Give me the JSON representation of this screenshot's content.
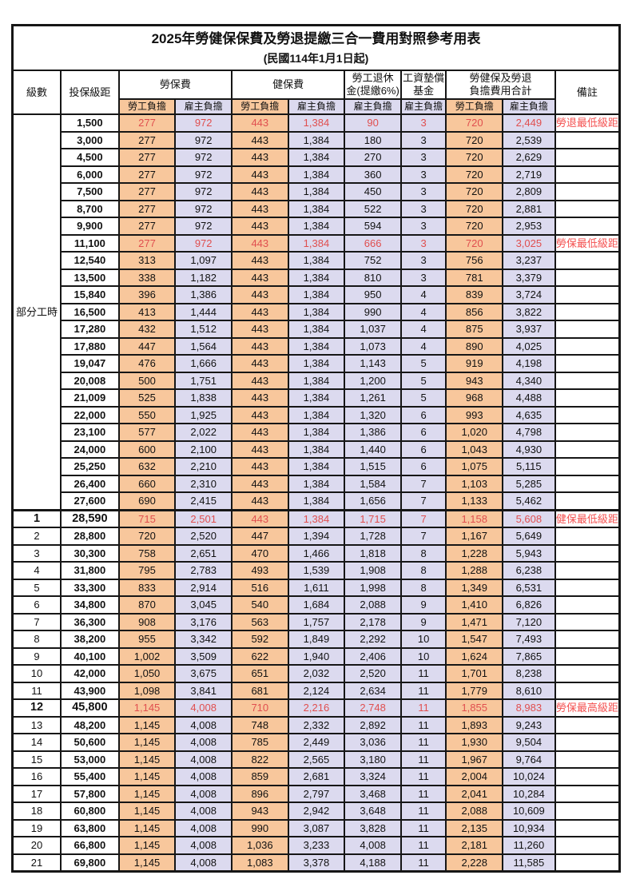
{
  "table": {
    "title": "2025年勞健保保費及勞退提繳三合一費用對照參考用表",
    "subtitle": "(民國114年1月1日起)",
    "columns": {
      "level": "級數",
      "salary": "投保級距",
      "labor": "勞保費",
      "health": "健保費",
      "pension_line1": "勞工退休",
      "pension_line2": "金(提繳6%)",
      "wage_fund_line1": "工資墊償",
      "wage_fund_line2": "基金",
      "total_line1": "勞健保及勞退",
      "total_line2": "負擔費用合計",
      "remark": "備註",
      "employee": "勞工負擔",
      "employer": "雇主負擔"
    },
    "colors": {
      "employee_bg": "#F8C79C",
      "employer_bg": "#DCDAEF",
      "highlight_text": "#E04F4F",
      "remark_text": "#F4504F",
      "border": "#161616"
    },
    "part_time_label": "部分工時",
    "part_time_row_count": 23,
    "value_column_keys": [
      "labor-employee",
      "labor-employer",
      "health-employee",
      "health-employer",
      "pension-employer",
      "wage-fund-employer",
      "total-employee",
      "total-employer"
    ],
    "rows": [
      {
        "level": null,
        "salary": "1,500",
        "values": [
          "277",
          "972",
          "443",
          "1,384",
          "90",
          "3",
          "720",
          "2,449"
        ],
        "remark": "勞退最低級距",
        "red": true
      },
      {
        "level": null,
        "salary": "3,000",
        "values": [
          "277",
          "972",
          "443",
          "1,384",
          "180",
          "3",
          "720",
          "2,539"
        ],
        "remark": ""
      },
      {
        "level": null,
        "salary": "4,500",
        "values": [
          "277",
          "972",
          "443",
          "1,384",
          "270",
          "3",
          "720",
          "2,629"
        ],
        "remark": ""
      },
      {
        "level": null,
        "salary": "6,000",
        "values": [
          "277",
          "972",
          "443",
          "1,384",
          "360",
          "3",
          "720",
          "2,719"
        ],
        "remark": ""
      },
      {
        "level": null,
        "salary": "7,500",
        "values": [
          "277",
          "972",
          "443",
          "1,384",
          "450",
          "3",
          "720",
          "2,809"
        ],
        "remark": ""
      },
      {
        "level": null,
        "salary": "8,700",
        "values": [
          "277",
          "972",
          "443",
          "1,384",
          "522",
          "3",
          "720",
          "2,881"
        ],
        "remark": ""
      },
      {
        "level": null,
        "salary": "9,900",
        "values": [
          "277",
          "972",
          "443",
          "1,384",
          "594",
          "3",
          "720",
          "2,953"
        ],
        "remark": ""
      },
      {
        "level": null,
        "salary": "11,100",
        "values": [
          "277",
          "972",
          "443",
          "1,384",
          "666",
          "3",
          "720",
          "3,025"
        ],
        "remark": "勞保最低級距",
        "red": true
      },
      {
        "level": null,
        "salary": "12,540",
        "values": [
          "313",
          "1,097",
          "443",
          "1,384",
          "752",
          "3",
          "756",
          "3,237"
        ],
        "remark": ""
      },
      {
        "level": null,
        "salary": "13,500",
        "values": [
          "338",
          "1,182",
          "443",
          "1,384",
          "810",
          "3",
          "781",
          "3,379"
        ],
        "remark": ""
      },
      {
        "level": null,
        "salary": "15,840",
        "values": [
          "396",
          "1,386",
          "443",
          "1,384",
          "950",
          "4",
          "839",
          "3,724"
        ],
        "remark": ""
      },
      {
        "level": null,
        "salary": "16,500",
        "values": [
          "413",
          "1,444",
          "443",
          "1,384",
          "990",
          "4",
          "856",
          "3,822"
        ],
        "remark": ""
      },
      {
        "level": null,
        "salary": "17,280",
        "values": [
          "432",
          "1,512",
          "443",
          "1,384",
          "1,037",
          "4",
          "875",
          "3,937"
        ],
        "remark": ""
      },
      {
        "level": null,
        "salary": "17,880",
        "values": [
          "447",
          "1,564",
          "443",
          "1,384",
          "1,073",
          "4",
          "890",
          "4,025"
        ],
        "remark": ""
      },
      {
        "level": null,
        "salary": "19,047",
        "values": [
          "476",
          "1,666",
          "443",
          "1,384",
          "1,143",
          "5",
          "919",
          "4,198"
        ],
        "remark": ""
      },
      {
        "level": null,
        "salary": "20,008",
        "values": [
          "500",
          "1,751",
          "443",
          "1,384",
          "1,200",
          "5",
          "943",
          "4,340"
        ],
        "remark": ""
      },
      {
        "level": null,
        "salary": "21,009",
        "values": [
          "525",
          "1,838",
          "443",
          "1,384",
          "1,261",
          "5",
          "968",
          "4,488"
        ],
        "remark": ""
      },
      {
        "level": null,
        "salary": "22,000",
        "values": [
          "550",
          "1,925",
          "443",
          "1,384",
          "1,320",
          "6",
          "993",
          "4,635"
        ],
        "remark": ""
      },
      {
        "level": null,
        "salary": "23,100",
        "values": [
          "577",
          "2,022",
          "443",
          "1,384",
          "1,386",
          "6",
          "1,020",
          "4,798"
        ],
        "remark": ""
      },
      {
        "level": null,
        "salary": "24,000",
        "values": [
          "600",
          "2,100",
          "443",
          "1,384",
          "1,440",
          "6",
          "1,043",
          "4,930"
        ],
        "remark": ""
      },
      {
        "level": null,
        "salary": "25,250",
        "values": [
          "632",
          "2,210",
          "443",
          "1,384",
          "1,515",
          "6",
          "1,075",
          "5,115"
        ],
        "remark": ""
      },
      {
        "level": null,
        "salary": "26,400",
        "values": [
          "660",
          "2,310",
          "443",
          "1,384",
          "1,584",
          "7",
          "1,103",
          "5,285"
        ],
        "remark": ""
      },
      {
        "level": null,
        "salary": "27,600",
        "values": [
          "690",
          "2,415",
          "443",
          "1,384",
          "1,656",
          "7",
          "1,133",
          "5,462"
        ],
        "remark": ""
      },
      {
        "level": "1",
        "salary": "28,590",
        "values": [
          "715",
          "2,501",
          "443",
          "1,384",
          "1,715",
          "7",
          "1,158",
          "5,608"
        ],
        "remark": "健保最低級距",
        "red": true,
        "bold": true,
        "thick_top": true
      },
      {
        "level": "2",
        "salary": "28,800",
        "values": [
          "720",
          "2,520",
          "447",
          "1,394",
          "1,728",
          "7",
          "1,167",
          "5,649"
        ],
        "remark": ""
      },
      {
        "level": "3",
        "salary": "30,300",
        "values": [
          "758",
          "2,651",
          "470",
          "1,466",
          "1,818",
          "8",
          "1,228",
          "5,943"
        ],
        "remark": ""
      },
      {
        "level": "4",
        "salary": "31,800",
        "values": [
          "795",
          "2,783",
          "493",
          "1,539",
          "1,908",
          "8",
          "1,288",
          "6,238"
        ],
        "remark": ""
      },
      {
        "level": "5",
        "salary": "33,300",
        "values": [
          "833",
          "2,914",
          "516",
          "1,611",
          "1,998",
          "8",
          "1,349",
          "6,531"
        ],
        "remark": ""
      },
      {
        "level": "6",
        "salary": "34,800",
        "values": [
          "870",
          "3,045",
          "540",
          "1,684",
          "2,088",
          "9",
          "1,410",
          "6,826"
        ],
        "remark": ""
      },
      {
        "level": "7",
        "salary": "36,300",
        "values": [
          "908",
          "3,176",
          "563",
          "1,757",
          "2,178",
          "9",
          "1,471",
          "7,120"
        ],
        "remark": ""
      },
      {
        "level": "8",
        "salary": "38,200",
        "values": [
          "955",
          "3,342",
          "592",
          "1,849",
          "2,292",
          "10",
          "1,547",
          "7,493"
        ],
        "remark": ""
      },
      {
        "level": "9",
        "salary": "40,100",
        "values": [
          "1,002",
          "3,509",
          "622",
          "1,940",
          "2,406",
          "10",
          "1,624",
          "7,865"
        ],
        "remark": ""
      },
      {
        "level": "10",
        "salary": "42,000",
        "values": [
          "1,050",
          "3,675",
          "651",
          "2,032",
          "2,520",
          "11",
          "1,701",
          "8,238"
        ],
        "remark": ""
      },
      {
        "level": "11",
        "salary": "43,900",
        "values": [
          "1,098",
          "3,841",
          "681",
          "2,124",
          "2,634",
          "11",
          "1,779",
          "8,610"
        ],
        "remark": ""
      },
      {
        "level": "12",
        "salary": "45,800",
        "values": [
          "1,145",
          "4,008",
          "710",
          "2,216",
          "2,748",
          "11",
          "1,855",
          "8,983"
        ],
        "remark": "勞保最高級距",
        "red": true,
        "bold": true
      },
      {
        "level": "13",
        "salary": "48,200",
        "values": [
          "1,145",
          "4,008",
          "748",
          "2,332",
          "2,892",
          "11",
          "1,893",
          "9,243"
        ],
        "remark": ""
      },
      {
        "level": "14",
        "salary": "50,600",
        "values": [
          "1,145",
          "4,008",
          "785",
          "2,449",
          "3,036",
          "11",
          "1,930",
          "9,504"
        ],
        "remark": ""
      },
      {
        "level": "15",
        "salary": "53,000",
        "values": [
          "1,145",
          "4,008",
          "822",
          "2,565",
          "3,180",
          "11",
          "1,967",
          "9,764"
        ],
        "remark": ""
      },
      {
        "level": "16",
        "salary": "55,400",
        "values": [
          "1,145",
          "4,008",
          "859",
          "2,681",
          "3,324",
          "11",
          "2,004",
          "10,024"
        ],
        "remark": ""
      },
      {
        "level": "17",
        "salary": "57,800",
        "values": [
          "1,145",
          "4,008",
          "896",
          "2,797",
          "3,468",
          "11",
          "2,041",
          "10,284"
        ],
        "remark": ""
      },
      {
        "level": "18",
        "salary": "60,800",
        "values": [
          "1,145",
          "4,008",
          "943",
          "2,942",
          "3,648",
          "11",
          "2,088",
          "10,609"
        ],
        "remark": ""
      },
      {
        "level": "19",
        "salary": "63,800",
        "values": [
          "1,145",
          "4,008",
          "990",
          "3,087",
          "3,828",
          "11",
          "2,135",
          "10,934"
        ],
        "remark": ""
      },
      {
        "level": "20",
        "salary": "66,800",
        "values": [
          "1,145",
          "4,008",
          "1,036",
          "3,233",
          "4,008",
          "11",
          "2,181",
          "11,260"
        ],
        "remark": ""
      },
      {
        "level": "21",
        "salary": "69,800",
        "values": [
          "1,145",
          "4,008",
          "1,083",
          "3,378",
          "4,188",
          "11",
          "2,228",
          "11,585"
        ],
        "remark": ""
      }
    ]
  }
}
